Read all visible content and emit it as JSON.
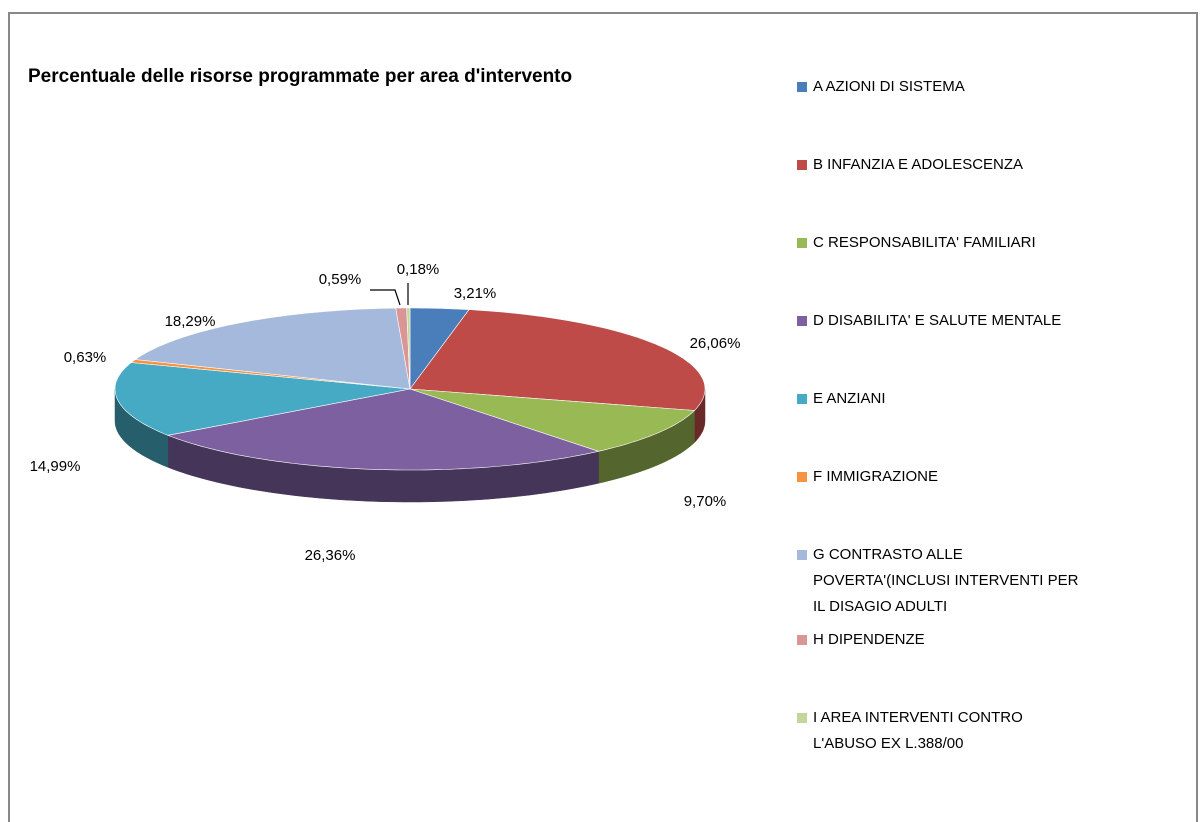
{
  "chart_data": {
    "type": "pie3d",
    "title": "Percentuale delle risorse programmate per area d'intervento",
    "categories": [
      "A AZIONI DI SISTEMA",
      "B  INFANZIA  E  ADOLESCENZA",
      "C RESPONSABILITA'  FAMILIARI",
      "D DISABILITA'  E  SALUTE  MENTALE",
      "E ANZIANI",
      "F IMMIGRAZIONE",
      "G CONTRASTO  ALLE\nPOVERTA'(INCLUSI  INTERVENTI  PER\nIL DISAGIO  ADULTI",
      "H DIPENDENZE",
      "I AREA  INTERVENTI  CONTRO\nL'ABUSO EX L.388/00"
    ],
    "values": [
      3.21,
      26.06,
      9.7,
      26.36,
      14.99,
      0.63,
      18.29,
      0.59,
      0.18
    ],
    "value_labels": [
      "3,21%",
      "26,06%",
      "9,70%",
      "26,36%",
      "14,99%",
      "0,63%",
      "18,29%",
      "0,59%",
      "0,18%"
    ],
    "colors": [
      "#4a7ebb",
      "#be4b48",
      "#98b954",
      "#7d60a0",
      "#46aac5",
      "#f69240",
      "#a5b9dc",
      "#da9694",
      "#c3d69b"
    ],
    "legend": "right"
  }
}
